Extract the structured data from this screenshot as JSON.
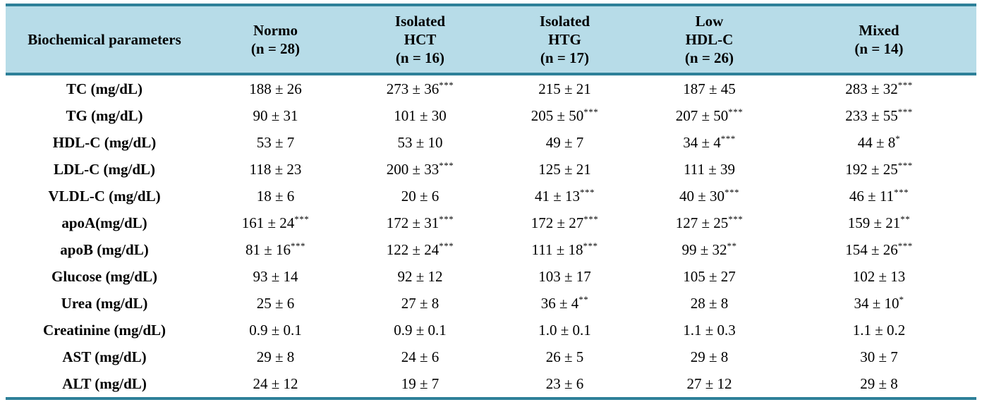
{
  "colors": {
    "header_background": "#B7DCE8",
    "rule_teal": "#2E8099",
    "text": "#000000",
    "body_background": "#FFFFFF"
  },
  "table": {
    "header": [
      "Biochemical parameters",
      "Normo\n(n = 28)",
      "Isolated\nHCT\n(n = 16)",
      "Isolated\nHTG\n(n = 17)",
      "Low\nHDL-C\n(n = 26)",
      "Mixed\n(n = 14)"
    ],
    "rows": [
      {
        "label": "TC (mg/dL)",
        "cells": [
          {
            "v": "188 ± 26",
            "s": ""
          },
          {
            "v": "273 ± 36",
            "s": "***"
          },
          {
            "v": "215 ± 21",
            "s": ""
          },
          {
            "v": "187 ± 45",
            "s": ""
          },
          {
            "v": "283 ± 32",
            "s": "***"
          }
        ]
      },
      {
        "label": "TG (mg/dL)",
        "cells": [
          {
            "v": "90 ± 31",
            "s": ""
          },
          {
            "v": "101 ± 30",
            "s": ""
          },
          {
            "v": "205 ± 50",
            "s": "***"
          },
          {
            "v": "207 ± 50",
            "s": "***"
          },
          {
            "v": "233 ± 55",
            "s": "***"
          }
        ]
      },
      {
        "label": "HDL-C (mg/dL)",
        "cells": [
          {
            "v": "53 ± 7",
            "s": ""
          },
          {
            "v": "53 ± 10",
            "s": ""
          },
          {
            "v": "49 ± 7",
            "s": ""
          },
          {
            "v": "34 ± 4",
            "s": "***"
          },
          {
            "v": "44 ± 8",
            "s": "*"
          }
        ]
      },
      {
        "label": "LDL-C (mg/dL)",
        "cells": [
          {
            "v": "118 ± 23",
            "s": ""
          },
          {
            "v": "200 ± 33",
            "s": "***"
          },
          {
            "v": "125 ± 21",
            "s": ""
          },
          {
            "v": "111 ± 39",
            "s": ""
          },
          {
            "v": "192 ± 25",
            "s": "***"
          }
        ]
      },
      {
        "label": "VLDL-C (mg/dL)",
        "cells": [
          {
            "v": "18 ± 6",
            "s": ""
          },
          {
            "v": "20 ± 6",
            "s": ""
          },
          {
            "v": "41 ± 13",
            "s": "***"
          },
          {
            "v": "40 ± 30",
            "s": "***"
          },
          {
            "v": "46 ± 11",
            "s": "***"
          }
        ]
      },
      {
        "label": "apoA(mg/dL)",
        "cells": [
          {
            "v": "161 ± 24",
            "s": "***"
          },
          {
            "v": "172 ± 31",
            "s": "***"
          },
          {
            "v": "172 ± 27",
            "s": "***"
          },
          {
            "v": "127 ± 25",
            "s": "***"
          },
          {
            "v": "159 ± 21",
            "s": "**"
          }
        ]
      },
      {
        "label": "apoB (mg/dL)",
        "cells": [
          {
            "v": "81 ± 16",
            "s": "***"
          },
          {
            "v": "122 ± 24",
            "s": "***"
          },
          {
            "v": "111 ± 18",
            "s": "***"
          },
          {
            "v": "99 ± 32",
            "s": "**"
          },
          {
            "v": "154 ± 26",
            "s": "***"
          }
        ]
      },
      {
        "label": "Glucose (mg/dL)",
        "cells": [
          {
            "v": "93 ± 14",
            "s": ""
          },
          {
            "v": "92 ± 12",
            "s": ""
          },
          {
            "v": "103 ± 17",
            "s": ""
          },
          {
            "v": "105 ± 27",
            "s": ""
          },
          {
            "v": "102 ± 13",
            "s": ""
          }
        ]
      },
      {
        "label": "Urea (mg/dL)",
        "cells": [
          {
            "v": "25 ± 6",
            "s": ""
          },
          {
            "v": "27 ± 8",
            "s": ""
          },
          {
            "v": "36 ± 4",
            "s": "**"
          },
          {
            "v": "28 ± 8",
            "s": ""
          },
          {
            "v": "34 ± 10",
            "s": "*"
          }
        ]
      },
      {
        "label": "Creatinine (mg/dL)",
        "cells": [
          {
            "v": "0.9 ± 0.1",
            "s": ""
          },
          {
            "v": "0.9 ± 0.1",
            "s": ""
          },
          {
            "v": "1.0 ± 0.1",
            "s": ""
          },
          {
            "v": "1.1 ± 0.3",
            "s": ""
          },
          {
            "v": "1.1 ± 0.2",
            "s": ""
          }
        ]
      },
      {
        "label": "AST (mg/dL)",
        "cells": [
          {
            "v": "29 ± 8",
            "s": ""
          },
          {
            "v": "24 ± 6",
            "s": ""
          },
          {
            "v": "26 ± 5",
            "s": ""
          },
          {
            "v": "29 ± 8",
            "s": ""
          },
          {
            "v": "30 ± 7",
            "s": ""
          }
        ]
      },
      {
        "label": "ALT (mg/dL)",
        "cells": [
          {
            "v": "24 ± 12",
            "s": ""
          },
          {
            "v": "19 ± 7",
            "s": ""
          },
          {
            "v": "23 ± 6",
            "s": ""
          },
          {
            "v": "27 ± 12",
            "s": ""
          },
          {
            "v": "29 ± 8",
            "s": ""
          }
        ]
      }
    ]
  }
}
